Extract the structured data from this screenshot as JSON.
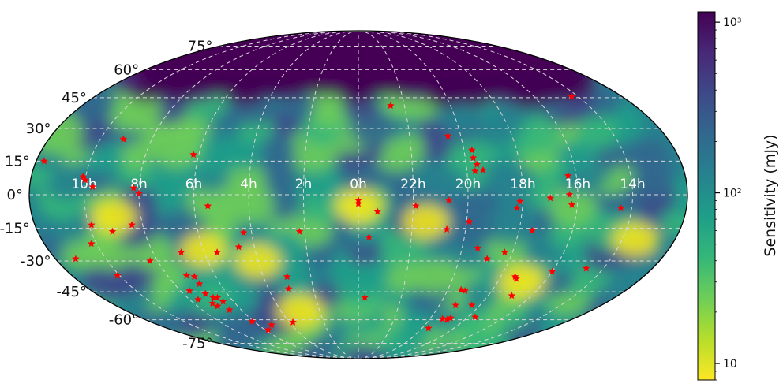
{
  "chart_data": {
    "type": "heatmap",
    "projection": "mollweide",
    "title": "",
    "xlabel": "",
    "ylabel": "",
    "ra_tick_labels": [
      "10h",
      "8h",
      "6h",
      "4h",
      "2h",
      "0h",
      "22h",
      "20h",
      "18h",
      "16h",
      "14h"
    ],
    "ra_tick_hours": [
      10,
      8,
      6,
      4,
      2,
      0,
      22,
      20,
      18,
      16,
      14
    ],
    "dec_tick_labels": [
      "75°",
      "60°",
      "45°",
      "30°",
      "15°",
      "0°",
      "-15°",
      "-30°",
      "-45°",
      "-60°",
      "-75°"
    ],
    "dec_tick_values": [
      75,
      60,
      45,
      30,
      15,
      0,
      -15,
      -30,
      -45,
      -60,
      -75
    ],
    "grid": true,
    "colorbar": {
      "label": "Sensitivity (mJy)",
      "scale": "log",
      "range": [
        8,
        1150
      ],
      "tick_labels": [
        "10",
        "10²",
        "10³"
      ],
      "tick_values": [
        10,
        100,
        1000
      ],
      "colormap": "viridis_r",
      "colors": [
        "#fde725",
        "#b5de2b",
        "#6ece58",
        "#35b779",
        "#1f9e89",
        "#26828e",
        "#31688e",
        "#3e4989",
        "#482878",
        "#440154"
      ]
    },
    "sources": {
      "marker": "star",
      "color": "#ff0000",
      "points": [
        {
          "ra": 14.3,
          "dec": 45.5
        },
        {
          "ra": 22.6,
          "dec": 41.0
        },
        {
          "ra": 11.7,
          "dec": 15.0
        },
        {
          "ra": 9.1,
          "dec": 25.0
        },
        {
          "ra": 10.1,
          "dec": 8.0
        },
        {
          "ra": 10.0,
          "dec": 6.5
        },
        {
          "ra": 9.7,
          "dec": 3.5
        },
        {
          "ra": 8.2,
          "dec": 3.0
        },
        {
          "ra": 8.0,
          "dec": 0.5
        },
        {
          "ra": 6.2,
          "dec": 18.0
        },
        {
          "ra": 5.5,
          "dec": -5.0
        },
        {
          "ra": 9.9,
          "dec": -13.5
        },
        {
          "ra": 9.2,
          "dec": -16.5
        },
        {
          "ra": 8.4,
          "dec": -13.5
        },
        {
          "ra": 10.2,
          "dec": -22.0
        },
        {
          "ra": 11.2,
          "dec": -29.0
        },
        {
          "ra": 10.1,
          "dec": -37.0
        },
        {
          "ra": 8.3,
          "dec": -30.0
        },
        {
          "ra": 6.9,
          "dec": -26.0
        },
        {
          "ra": 5.5,
          "dec": -26.0
        },
        {
          "ra": 4.3,
          "dec": -17.0
        },
        {
          "ra": 4.6,
          "dec": -23.5
        },
        {
          "ra": 3.0,
          "dec": -37.5
        },
        {
          "ra": 3.1,
          "dec": -43.5
        },
        {
          "ra": 2.2,
          "dec": -16.5
        },
        {
          "ra": 7.2,
          "dec": -37.0
        },
        {
          "ra": 6.9,
          "dec": -37.5
        },
        {
          "ra": 6.9,
          "dec": -41.0
        },
        {
          "ra": 7.6,
          "dec": -44.5
        },
        {
          "ra": 7.0,
          "dec": -46.0
        },
        {
          "ra": 6.8,
          "dec": -48.0
        },
        {
          "ra": 6.6,
          "dec": -48.0
        },
        {
          "ra": 7.1,
          "dec": -51.0
        },
        {
          "ra": 6.5,
          "dec": -50.0
        },
        {
          "ra": 6.6,
          "dec": -54.5
        },
        {
          "ra": 7.0,
          "dec": -52.5
        },
        {
          "ra": 7.6,
          "dec": -49.0
        },
        {
          "ra": 6.1,
          "dec": -61.0
        },
        {
          "ra": 5.2,
          "dec": -63.0
        },
        {
          "ra": 5.8,
          "dec": -66.0
        },
        {
          "ra": 3.8,
          "dec": -61.5
        },
        {
          "ra": 0.0,
          "dec": -2.5
        },
        {
          "ra": 0.0,
          "dec": -4.0
        },
        {
          "ra": 23.3,
          "dec": -7.5
        },
        {
          "ra": 23.6,
          "dec": -19.0
        },
        {
          "ra": 23.7,
          "dec": -48.0
        },
        {
          "ra": 21.9,
          "dec": -5.0
        },
        {
          "ra": 20.7,
          "dec": -2.5
        },
        {
          "ra": 20.7,
          "dec": -15.5
        },
        {
          "ra": 20.5,
          "dec": 26.5
        },
        {
          "ra": 19.7,
          "dec": 20.0
        },
        {
          "ra": 19.7,
          "dec": 16.5
        },
        {
          "ra": 19.6,
          "dec": 13.5
        },
        {
          "ra": 19.4,
          "dec": 11.0
        },
        {
          "ra": 19.7,
          "dec": 10.5
        },
        {
          "ra": 19.9,
          "dec": -12.0
        },
        {
          "ra": 18.1,
          "dec": -3.0
        },
        {
          "ra": 18.2,
          "dec": -6.0
        },
        {
          "ra": 17.5,
          "dec": -16.0
        },
        {
          "ra": 17.0,
          "dec": -1.5
        },
        {
          "ra": 16.3,
          "dec": 0.0
        },
        {
          "ra": 16.3,
          "dec": 8.5
        },
        {
          "ra": 16.2,
          "dec": -4.5
        },
        {
          "ra": 19.4,
          "dec": -24.0
        },
        {
          "ra": 18.3,
          "dec": -26.0
        },
        {
          "ra": 18.9,
          "dec": -29.0
        },
        {
          "ra": 19.4,
          "dec": -44.0
        },
        {
          "ra": 19.2,
          "dec": -44.5
        },
        {
          "ra": 18.4,
          "dec": -52.0
        },
        {
          "ra": 19.2,
          "dec": -52.0
        },
        {
          "ra": 18.9,
          "dec": -59.0
        },
        {
          "ra": 19.0,
          "dec": -60.0
        },
        {
          "ra": 19.6,
          "dec": -65.0
        },
        {
          "ra": 19.3,
          "dec": -59.5
        },
        {
          "ra": 17.6,
          "dec": -58.5
        },
        {
          "ra": 17.4,
          "dec": -37.5
        },
        {
          "ra": 17.3,
          "dec": -38.5
        },
        {
          "ra": 16.9,
          "dec": -47.0
        },
        {
          "ra": 16.0,
          "dec": -35.0
        },
        {
          "ra": 14.7,
          "dec": -33.5
        },
        {
          "ra": 14.4,
          "dec": -6.0
        }
      ]
    }
  }
}
